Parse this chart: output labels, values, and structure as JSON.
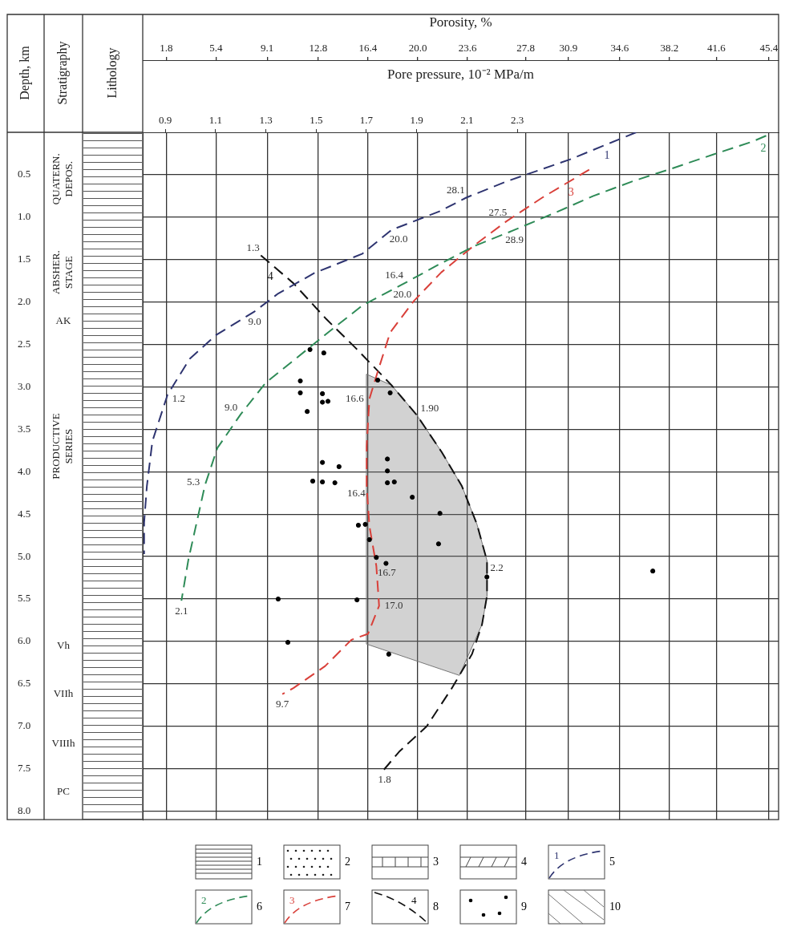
{
  "chart_data": {
    "type": "line",
    "xlabel": "Porosity, %",
    "x2label": "Pore pressure, 10⁻² MPa/m",
    "ylabel": "Depth, km",
    "xlim": [
      0.1,
      46.1
    ],
    "xticks": [
      1.8,
      5.4,
      9.1,
      12.8,
      16.4,
      {
        "value": 20,
        "label": "20.0"
      },
      23.6,
      27.8,
      30.9,
      34.6,
      38.2,
      41.6,
      45.4
    ],
    "x2lim": [
      0.81,
      3.34
    ],
    "x2ticks": [
      0.9,
      1.1,
      1.3,
      1.5,
      1.7,
      1.9,
      2.1,
      2.3
    ],
    "ylim": [
      8.1,
      0
    ],
    "yticks": [
      0.5,
      {
        "value": 1,
        "label": "1.0"
      },
      1.5,
      {
        "value": 2,
        "label": "2.0"
      },
      2.5,
      {
        "value": 3,
        "label": "3.0"
      },
      3.5,
      {
        "value": 4,
        "label": "4.0"
      },
      4.5,
      {
        "value": 5,
        "label": "5.0"
      },
      5.5,
      {
        "value": 6,
        "label": "6.0"
      },
      6.5,
      {
        "value": 7,
        "label": "7.0"
      },
      7.5,
      {
        "value": 8,
        "label": "8.0"
      }
    ],
    "grid": true,
    "series": [
      {
        "name": "1",
        "color": "#2e3470",
        "line_style": "dashed",
        "marker": "none",
        "x": [
          35.8,
          31.0,
          26.4,
          23.5,
          21.6,
          18.1,
          16.0,
          12.5,
          9.9,
          8.2,
          5.4,
          3.5,
          1.9,
          0.8,
          0.4,
          0.2,
          0.2
        ],
        "values": [
          0.0,
          0.32,
          0.58,
          0.77,
          0.93,
          1.15,
          1.43,
          1.66,
          1.9,
          2.11,
          2.39,
          2.67,
          3.09,
          3.64,
          4.17,
          4.6,
          4.97
        ]
      },
      {
        "name": "2",
        "color": "#2e8b57",
        "line_style": "dashed",
        "marker": "none",
        "x": [
          45.2,
          44.2,
          41.4,
          38.5,
          35.5,
          32.7,
          29.9,
          27.0,
          24.1,
          21.5,
          18.8,
          16.0,
          13.5,
          11.3,
          9.0,
          7.2,
          5.5,
          4.6,
          4.0,
          3.4,
          2.9
        ],
        "values": [
          0.04,
          0.11,
          0.26,
          0.42,
          0.58,
          0.75,
          0.95,
          1.15,
          1.34,
          1.56,
          1.8,
          2.04,
          2.36,
          2.65,
          2.95,
          3.32,
          3.72,
          4.16,
          4.6,
          5.04,
          5.52
        ]
      },
      {
        "name": "3",
        "color": "#d9403a",
        "line_style": "dashed",
        "marker": "none",
        "x": [
          32.4,
          29.0,
          26.4,
          24.1,
          21.7,
          19.7,
          18.0,
          17.1,
          16.5,
          16.3,
          16.3,
          16.5,
          17.0,
          17.2,
          16.4,
          15.2,
          13.3,
          11.0,
          10.2
        ],
        "values": [
          0.44,
          0.77,
          1.05,
          1.33,
          1.65,
          1.99,
          2.36,
          2.82,
          3.14,
          3.7,
          4.17,
          4.64,
          5.11,
          5.58,
          5.91,
          5.98,
          6.29,
          6.55,
          6.62
        ]
      },
      {
        "name": "4",
        "axis": "x2",
        "color": "#111111",
        "line_style": "dashed",
        "marker": "none",
        "x": [
          1.28,
          1.41,
          1.54,
          1.66,
          1.8,
          1.9,
          2.0,
          2.08,
          2.14,
          2.18,
          2.18,
          2.16,
          2.12,
          2.04,
          1.94,
          1.83,
          1.77
        ],
        "values": [
          1.45,
          1.78,
          2.2,
          2.55,
          2.98,
          3.33,
          3.77,
          4.17,
          4.62,
          5.05,
          5.46,
          5.8,
          6.15,
          6.55,
          7.0,
          7.3,
          7.51
        ]
      },
      {
        "type": "scatter",
        "color": "#000000",
        "marker": "circle",
        "x": [
          12.2,
          13.2,
          11.5,
          11.5,
          12.0,
          13.1,
          13.1,
          13.5,
          17.1,
          18.0,
          13.1,
          14.3,
          12.4,
          13.1,
          14.0,
          17.8,
          15.7,
          16.2,
          16.5,
          17.0,
          17.7,
          9.9,
          15.6,
          10.6,
          17.9,
          19.6,
          21.6,
          21.5,
          25.0,
          37.0,
          18.3,
          17.8,
          17.8
        ],
        "values": [
          2.56,
          2.6,
          2.93,
          3.07,
          3.29,
          3.08,
          3.18,
          3.17,
          2.92,
          3.07,
          3.89,
          3.94,
          4.11,
          4.12,
          4.13,
          4.13,
          4.63,
          4.62,
          4.8,
          5.01,
          5.08,
          5.5,
          5.51,
          6.01,
          6.15,
          4.3,
          4.49,
          4.85,
          5.24,
          5.17,
          4.12,
          3.85,
          3.99
        ]
      },
      {
        "type": "area",
        "axis": "x2",
        "color": "#777777",
        "x": [
          1.7,
          1.8,
          1.9,
          2.0,
          2.08,
          2.14,
          2.18,
          2.18,
          2.16,
          2.07,
          1.7,
          1.7
        ],
        "values": [
          2.85,
          2.98,
          3.33,
          3.77,
          4.17,
          4.62,
          5.05,
          5.46,
          5.8,
          6.4,
          6.03,
          2.85
        ]
      }
    ],
    "annotations": [
      "Stratigraphy",
      "Lithology",
      "QUATERN. DEPOS.",
      "ABSHER. STAGE",
      "AK",
      "PRODUCTIVE SERIES",
      "Vh",
      "VIIh",
      "VIIIh",
      "PC",
      "1",
      "2",
      "3",
      "4",
      "5",
      "6",
      "7",
      "8",
      "9",
      "10",
      {
        "text": "28.1",
        "x": 23.5,
        "y": 0.77
      },
      {
        "text": "20.0",
        "x": 18.1,
        "y": 1.15
      },
      {
        "text": "9.0",
        "x": 8.2,
        "y": 2.11
      },
      {
        "text": "1.2",
        "x": 1.9,
        "y": 3.09
      },
      {
        "text": "28.9",
        "x": 27.0,
        "y": 1.15
      },
      {
        "text": "16.4",
        "x": 18.8,
        "y": 1.8
      },
      {
        "text": "9.0",
        "x": 7.2,
        "y": 3.32
      },
      {
        "text": "5.3",
        "x": 4.6,
        "y": 4.16
      },
      {
        "text": "2.1",
        "x": 2.9,
        "y": 5.52
      },
      {
        "text": "27.5",
        "x": 26.4,
        "y": 1.05
      },
      {
        "text": "20.0",
        "x": 19.7,
        "y": 1.99
      },
      {
        "text": "16.6",
        "x": 16.5,
        "y": 3.14
      },
      {
        "text": "16.4",
        "x": 16.3,
        "y": 4.17
      },
      {
        "text": "16.7",
        "x": 17.0,
        "y": 5.11
      },
      {
        "text": "17.0",
        "x": 17.2,
        "y": 5.58
      },
      {
        "text": "9.7",
        "x": 10.2,
        "y": 6.62
      },
      {
        "text": "1.3",
        "x": 8.7,
        "y": 1.45
      },
      {
        "text": "1.90",
        "x": 20.0,
        "y": 3.33
      },
      {
        "text": "2.2",
        "x": 25.1,
        "y": 5.05
      },
      {
        "text": "1.8",
        "x": 17.6,
        "y": 7.51
      }
    ]
  }
}
